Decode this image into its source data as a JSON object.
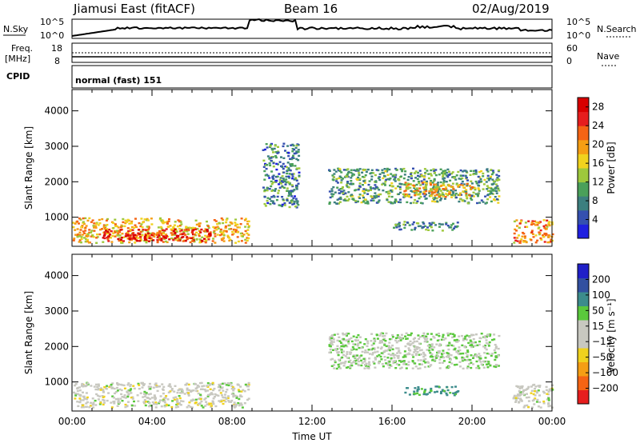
{
  "header": {
    "station": "Jiamusi East (fitACF)",
    "beam": "Beam 16",
    "date": "02/Aug/2019"
  },
  "noise_panel": {
    "left_label": "N.Sky",
    "right_label": "N.Search",
    "left_ticks": [
      "10^5",
      "10^0"
    ],
    "right_ticks": [
      "10^5",
      "10^0"
    ]
  },
  "freq_panel": {
    "left_label_1": "Freq.",
    "left_label_2": "[MHz]",
    "left_ticks": [
      "18",
      "8"
    ],
    "right_label": "Nave",
    "right_ticks": [
      "60",
      "0"
    ],
    "cpid_label": "CPID"
  },
  "cpid_panel": {
    "text": "normal (fast) 151"
  },
  "colors": {
    "power_scale": [
      "#1f1fe0",
      "#3550b0",
      "#3c7f7f",
      "#4aa05a",
      "#9ec83c",
      "#f0d21e",
      "#f59e14",
      "#f56414",
      "#e61e1e",
      "#d80000"
    ],
    "velocity_scale": [
      "#e61e1e",
      "#f56414",
      "#f59e14",
      "#f0d21e",
      "#c8c8c0",
      "#c8c8c0",
      "#5ac83c",
      "#3c8c8c",
      "#3250a0",
      "#2020c8"
    ],
    "ground_scatter": "#c0c0b8"
  },
  "chart_data": [
    {
      "type": "heatmap",
      "name": "power",
      "ylabel": "Slant Range [km]",
      "ylim": [
        180,
        4600
      ],
      "y_ticks": [
        "1000",
        "2000",
        "3000",
        "4000"
      ],
      "xlim_hours": [
        0,
        24
      ],
      "colorbar_label": "Power [dB]",
      "colorbar_range": [
        0,
        30
      ],
      "colorbar_ticks": [
        "4",
        "8",
        "12",
        "16",
        "20",
        "24",
        "28"
      ],
      "regions": [
        {
          "t0": 0.0,
          "t1": 8.8,
          "r0": 300,
          "r1": 1000,
          "level": 18
        },
        {
          "t0": 1.5,
          "t1": 7.0,
          "r0": 350,
          "r1": 700,
          "level": 27
        },
        {
          "t0": 9.5,
          "t1": 11.3,
          "r0": 1300,
          "r1": 3100,
          "level": 8
        },
        {
          "t0": 12.8,
          "t1": 21.3,
          "r0": 1400,
          "r1": 2400,
          "level": 10
        },
        {
          "t0": 16.5,
          "t1": 20.0,
          "r0": 1600,
          "r1": 2000,
          "level": 18
        },
        {
          "t0": 16.0,
          "t1": 19.3,
          "r0": 650,
          "r1": 900,
          "level": 9
        },
        {
          "t0": 22.0,
          "t1": 24.0,
          "r0": 300,
          "r1": 950,
          "level": 20
        }
      ]
    },
    {
      "type": "heatmap",
      "name": "velocity",
      "ylabel": "Slant Range [km]",
      "ylim": [
        180,
        4600
      ],
      "y_ticks": [
        "1000",
        "2000",
        "3000",
        "4000"
      ],
      "xlabel": "Time UT",
      "x_ticks": [
        "00:00",
        "04:00",
        "08:00",
        "12:00",
        "16:00",
        "20:00",
        "00:00"
      ],
      "xlim_hours": [
        0,
        24
      ],
      "colorbar_label": "Velocity [m s⁻¹]",
      "colorbar_ticks": [
        "200",
        "100",
        "50",
        "15",
        "−15",
        "−50",
        "−100",
        "−200"
      ],
      "regions": [
        {
          "t0": 0.0,
          "t1": 8.8,
          "r0": 300,
          "r1": 1000,
          "level": 0
        },
        {
          "t0": 12.8,
          "t1": 21.3,
          "r0": 1400,
          "r1": 2400,
          "level": 10
        },
        {
          "t0": 16.5,
          "t1": 19.3,
          "r0": 650,
          "r1": 900,
          "level": 60
        },
        {
          "t0": 22.0,
          "t1": 24.0,
          "r0": 300,
          "r1": 950,
          "level": 0
        }
      ]
    }
  ]
}
